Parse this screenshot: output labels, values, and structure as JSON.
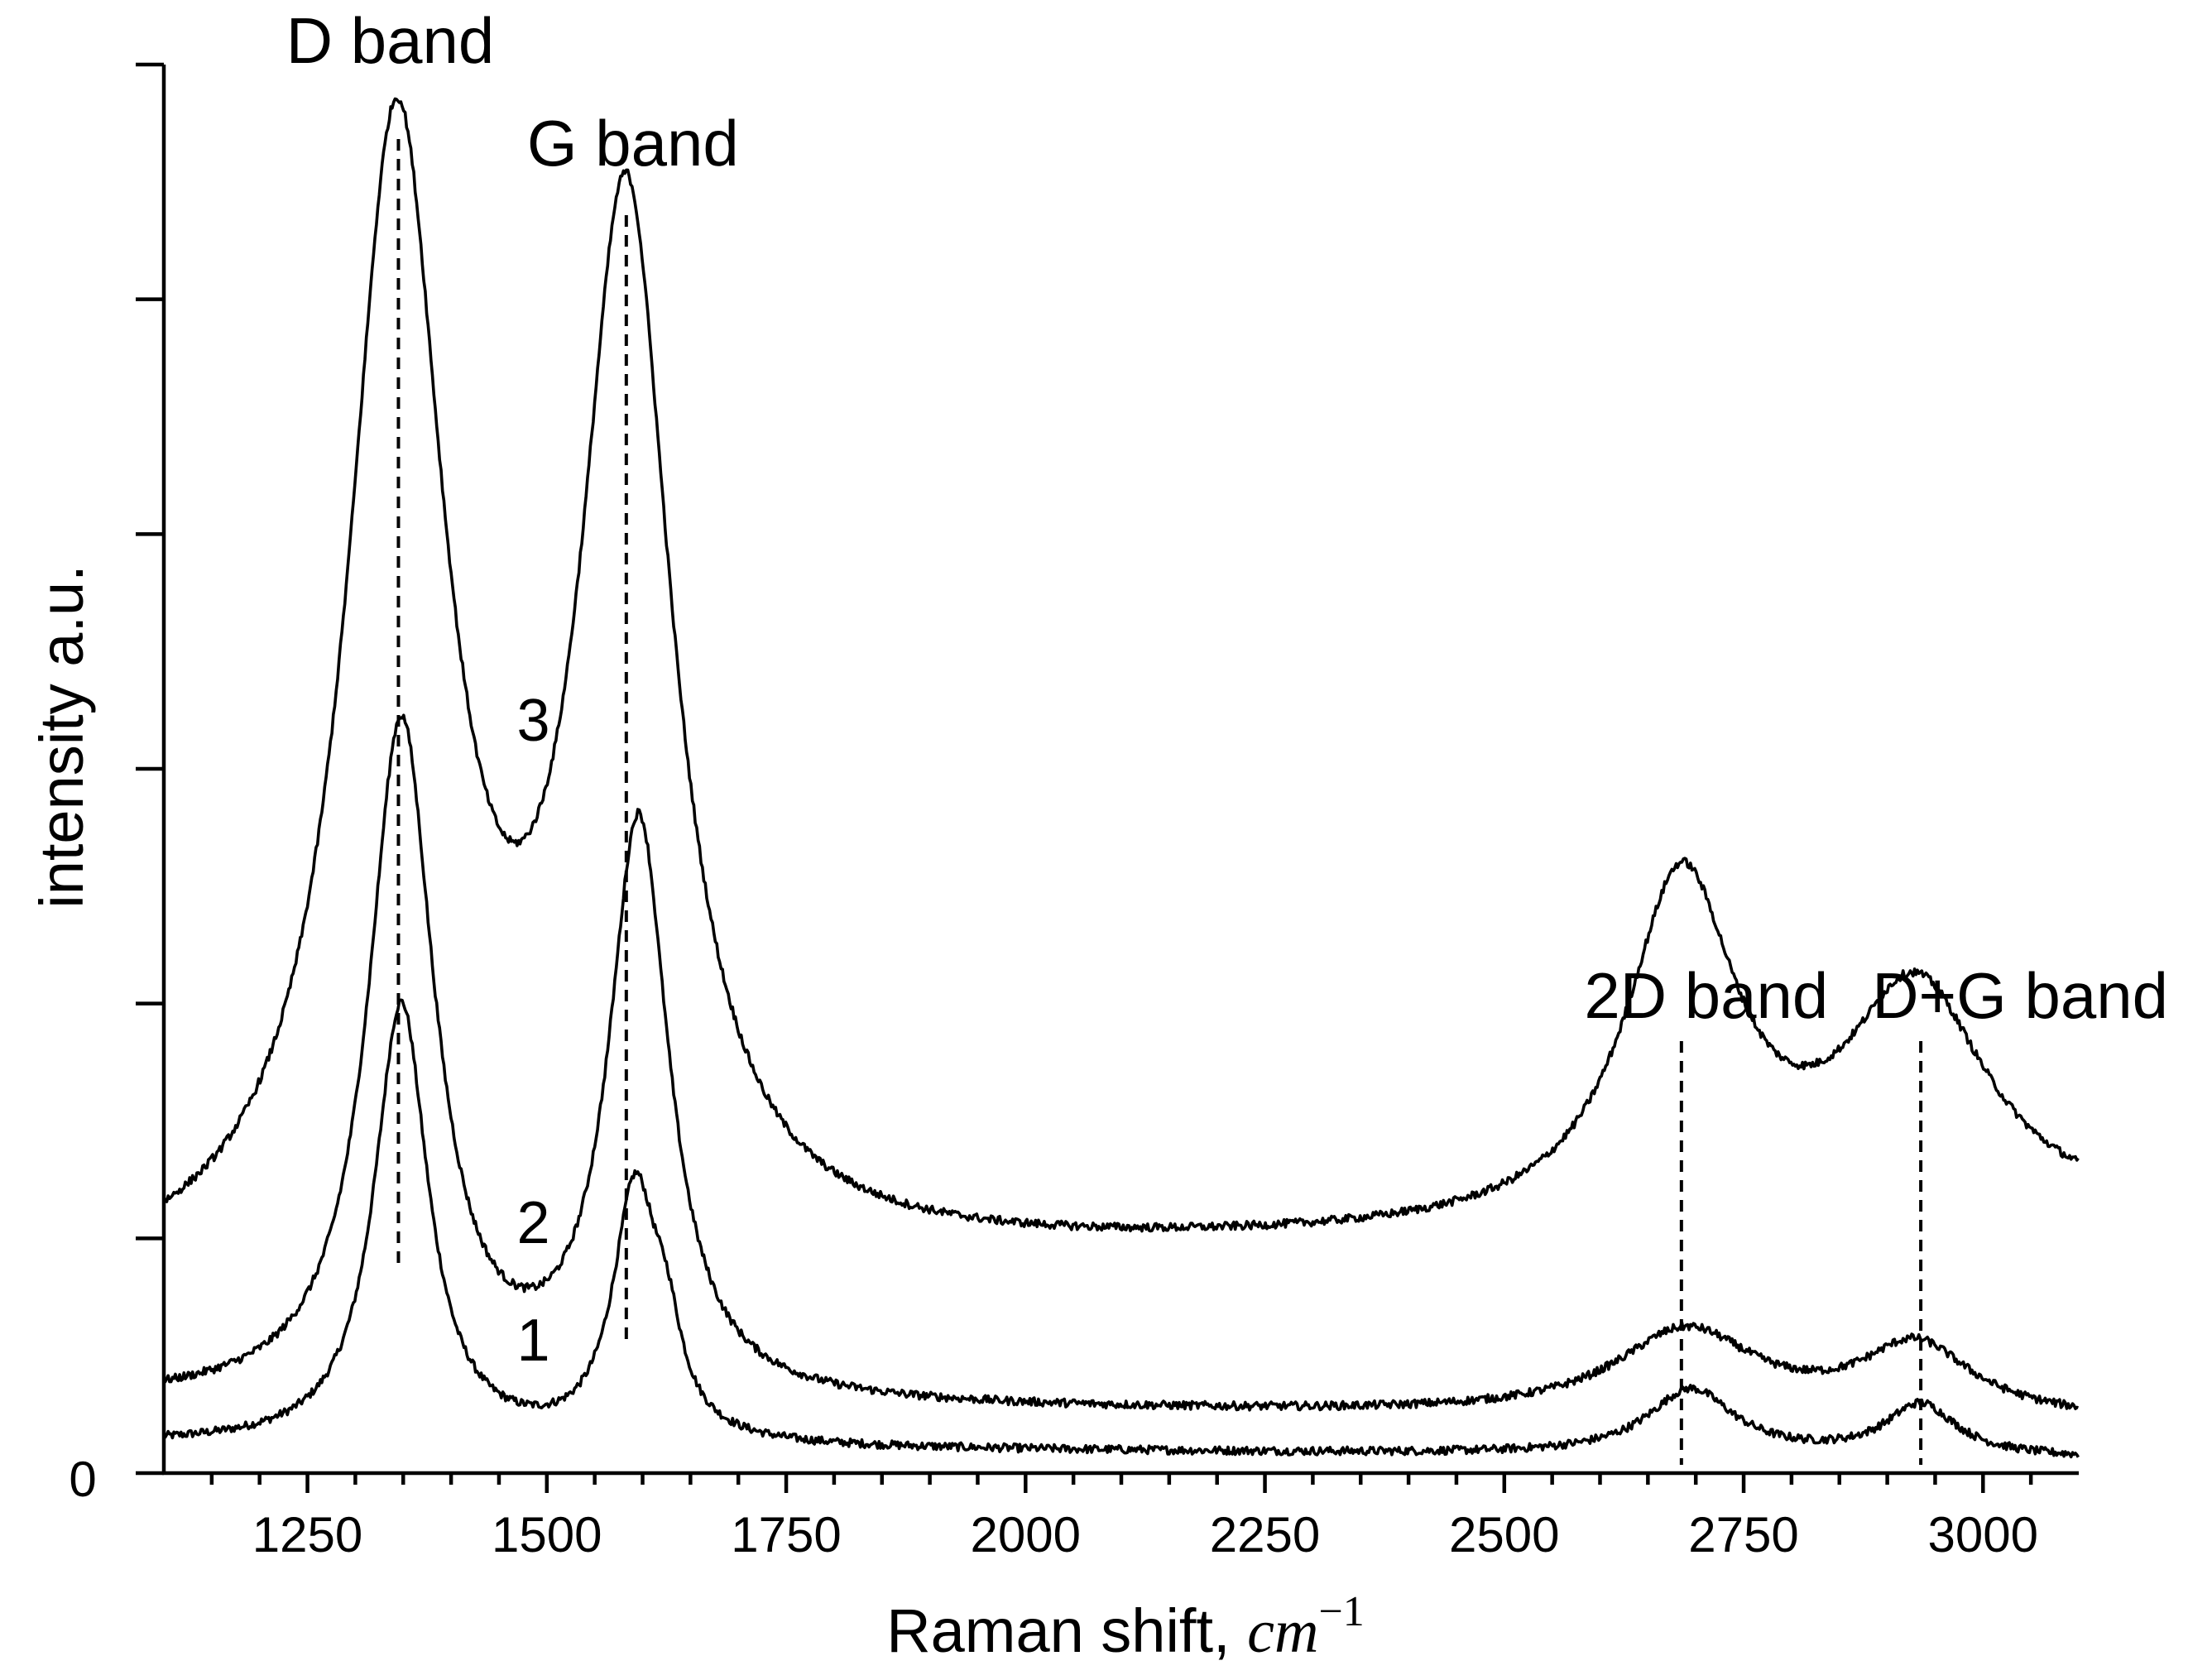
{
  "chart_data": {
    "type": "line",
    "title": "",
    "xlabel_text": "Raman shift, ",
    "xlabel_math": "cm",
    "xlabel_sup": "−1",
    "ylabel": "intensity a.u.",
    "xlim": [
      1100,
      3100
    ],
    "ylim": [
      0,
      6
    ],
    "x_ticks": [
      1250,
      1500,
      1750,
      2000,
      2250,
      2500,
      2750,
      3000
    ],
    "y_zero_label": "0",
    "bands": [
      {
        "name": "D band",
        "position": 1345
      },
      {
        "name": "G band",
        "position": 1583
      },
      {
        "name": "2D band",
        "position": 2685
      },
      {
        "name": "D+G band",
        "position": 2935
      }
    ],
    "series": [
      {
        "name": "1",
        "baseline": 0.12,
        "slope": -3e-05,
        "peaks": [
          {
            "center": 1348,
            "height": 1.88,
            "width": 34
          },
          {
            "center": 1592,
            "height": 1.05,
            "width": 28
          },
          {
            "center": 1625,
            "height": 0.32,
            "width": 20
          },
          {
            "center": 2695,
            "height": 0.28,
            "width": 55
          },
          {
            "center": 2935,
            "height": 0.22,
            "width": 45
          }
        ],
        "label_x": 1460,
        "label_y": 0.48
      },
      {
        "name": "2",
        "baseline": 0.3,
        "slope": -4e-05,
        "peaks": [
          {
            "center": 1348,
            "height": 2.88,
            "width": 42
          },
          {
            "center": 1596,
            "height": 2.45,
            "width": 38
          },
          {
            "center": 2690,
            "height": 0.36,
            "width": 90
          },
          {
            "center": 2930,
            "height": 0.3,
            "width": 70
          }
        ],
        "label_x": 1460,
        "label_y": 0.98
      },
      {
        "name": "3",
        "baseline": 0.8,
        "slope": 0.00013,
        "peaks": [
          {
            "center": 1343,
            "height": 4.78,
            "width": 62
          },
          {
            "center": 1583,
            "height": 4.37,
            "width": 58
          },
          {
            "center": 2685,
            "height": 1.46,
            "width": 70
          },
          {
            "center": 2930,
            "height": 0.97,
            "width": 90
          }
        ],
        "label_x": 1460,
        "label_y": 3.12
      }
    ]
  }
}
